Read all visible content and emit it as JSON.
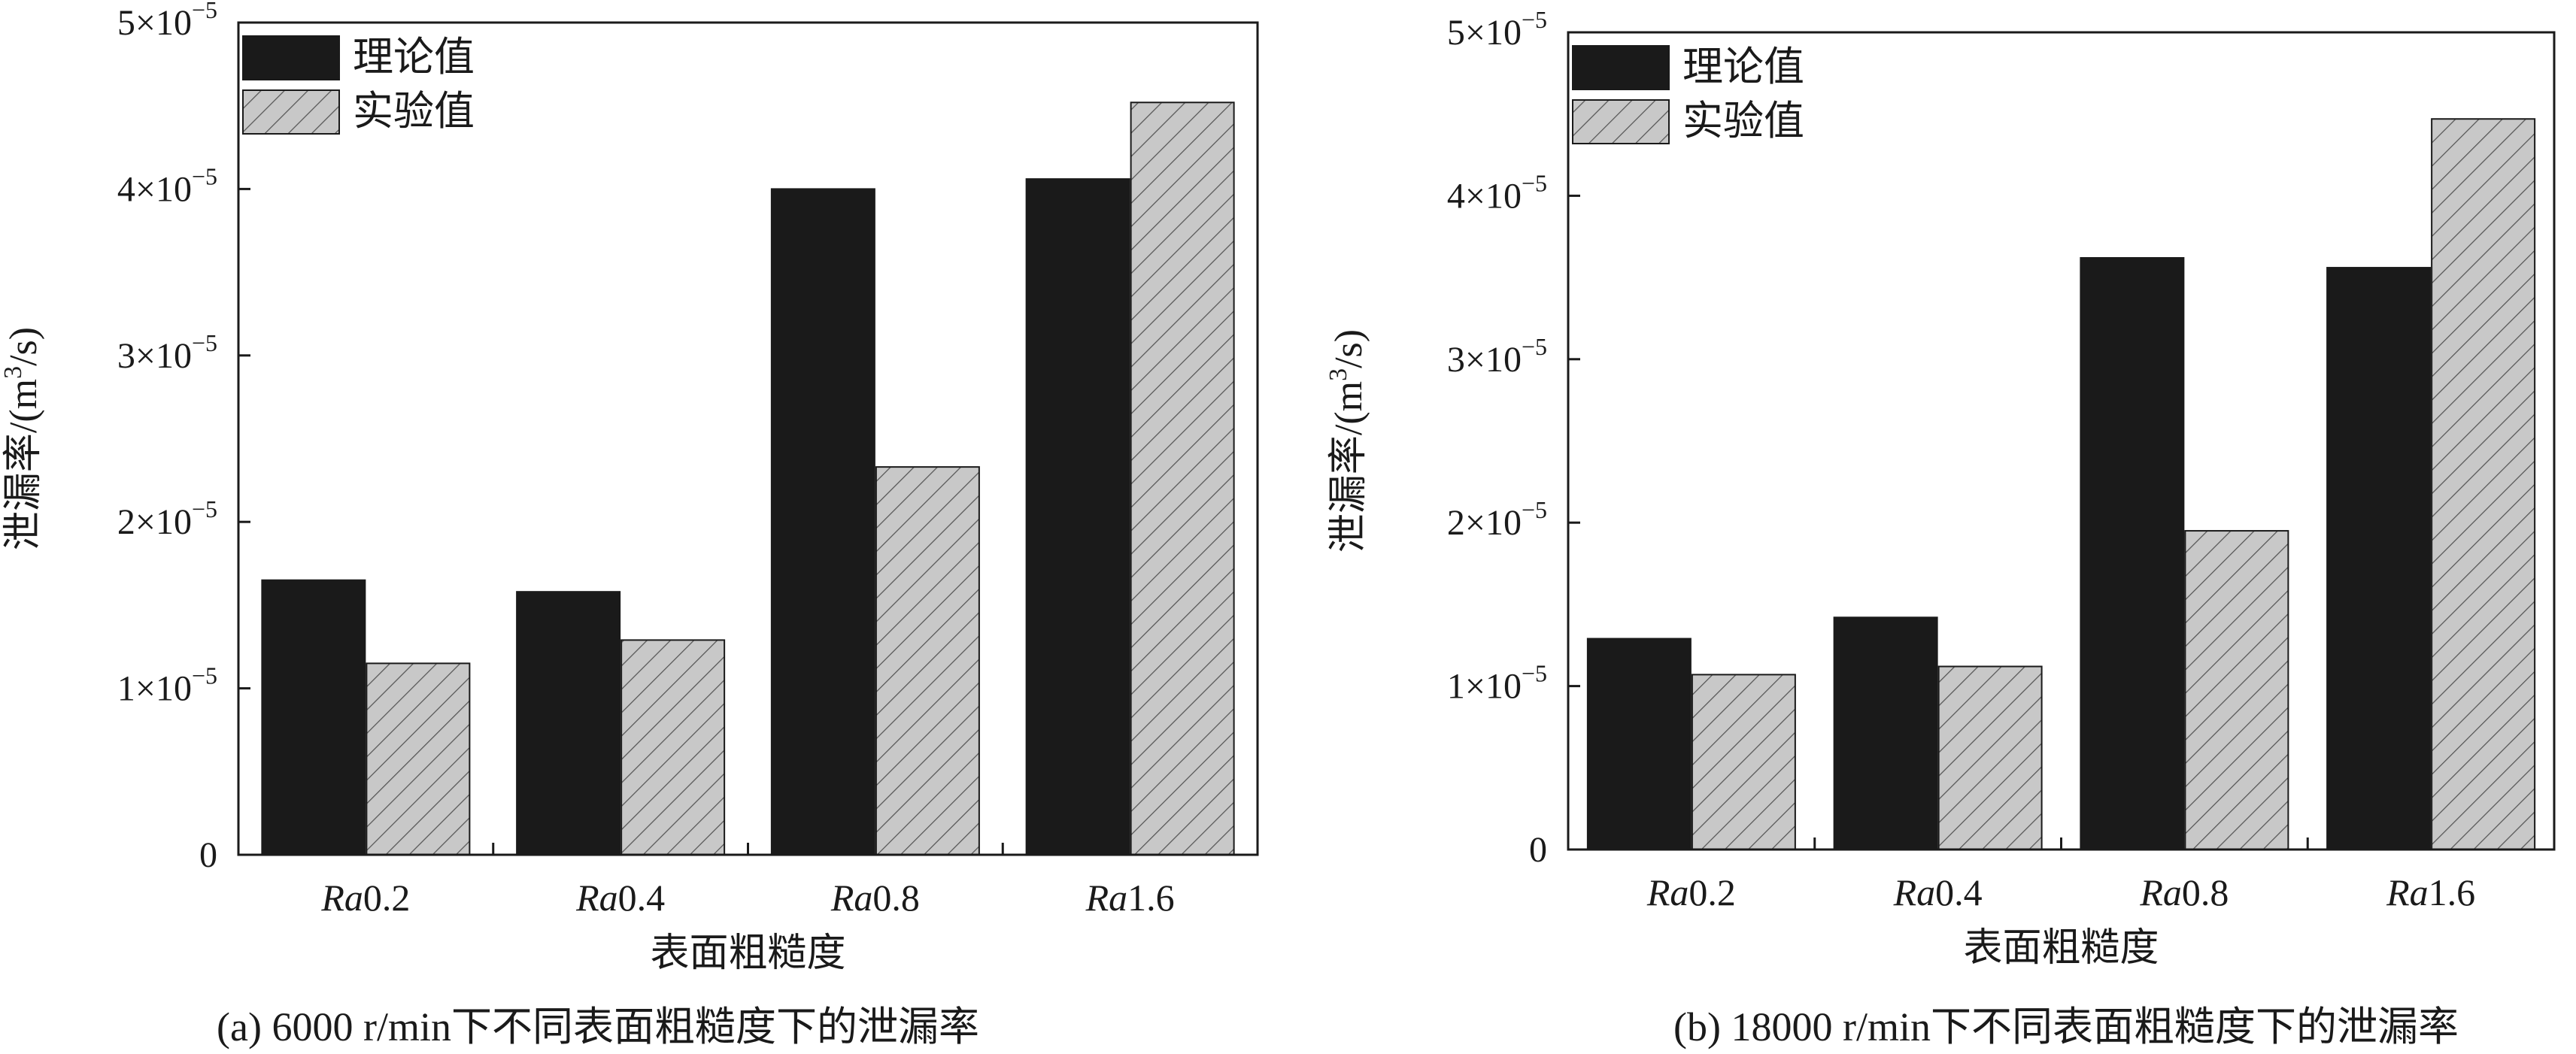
{
  "colors": {
    "theory": "#1a1a1a",
    "experiment": "#c8c8c8",
    "axis": "#1a1a1a"
  },
  "chart_data": [
    {
      "type": "bar",
      "caption": "(a) 6000 r/min下不同表面粗糙度下的泄漏率",
      "xlabel": "表面粗糙度",
      "ylabel_main": "泄漏率/(m",
      "ylabel_sup": "3",
      "ylabel_end": "/s)",
      "categories": [
        {
          "italic": "Ra",
          "rest": "0.2"
        },
        {
          "italic": "Ra",
          "rest": "0.4"
        },
        {
          "italic": "Ra",
          "rest": "0.8"
        },
        {
          "italic": "Ra",
          "rest": "1.6"
        }
      ],
      "yticks": [
        {
          "value": 0,
          "label": "0",
          "exp": ""
        },
        {
          "value": 1,
          "label": "1×10",
          "exp": "−5"
        },
        {
          "value": 2,
          "label": "2×10",
          "exp": "−5"
        },
        {
          "value": 3,
          "label": "3×10",
          "exp": "−5"
        },
        {
          "value": 4,
          "label": "4×10",
          "exp": "−5"
        },
        {
          "value": 5,
          "label": "5×10",
          "exp": "−5"
        }
      ],
      "ylim": [
        0,
        5
      ],
      "y_unit_multiplier": "1e-5 m³/s",
      "legend_position": "top-left",
      "series": [
        {
          "name": "理论值",
          "style": "solid",
          "values": [
            1.65,
            1.58,
            4.0,
            4.06
          ]
        },
        {
          "name": "实验值",
          "style": "hatched",
          "values": [
            1.15,
            1.29,
            2.33,
            4.52
          ]
        }
      ]
    },
    {
      "type": "bar",
      "caption": "(b) 18000 r/min下不同表面粗糙度下的泄漏率",
      "xlabel": "表面粗糙度",
      "ylabel_main": "泄漏率/(m",
      "ylabel_sup": "3",
      "ylabel_end": "/s)",
      "categories": [
        {
          "italic": "Ra",
          "rest": "0.2"
        },
        {
          "italic": "Ra",
          "rest": "0.4"
        },
        {
          "italic": "Ra",
          "rest": "0.8"
        },
        {
          "italic": "Ra",
          "rest": "1.6"
        }
      ],
      "yticks": [
        {
          "value": 0,
          "label": "0",
          "exp": ""
        },
        {
          "value": 1,
          "label": "1×10",
          "exp": "−5"
        },
        {
          "value": 2,
          "label": "2×10",
          "exp": "−5"
        },
        {
          "value": 3,
          "label": "3×10",
          "exp": "−5"
        },
        {
          "value": 4,
          "label": "4×10",
          "exp": "−5"
        },
        {
          "value": 5,
          "label": "5×10",
          "exp": "−5"
        }
      ],
      "ylim": [
        0,
        5
      ],
      "y_unit_multiplier": "1e-5 m³/s",
      "legend_position": "top-left",
      "series": [
        {
          "name": "理论值",
          "style": "solid",
          "values": [
            1.29,
            1.42,
            3.62,
            3.56
          ]
        },
        {
          "name": "实验值",
          "style": "hatched",
          "values": [
            1.07,
            1.12,
            1.95,
            4.47
          ]
        }
      ]
    }
  ]
}
